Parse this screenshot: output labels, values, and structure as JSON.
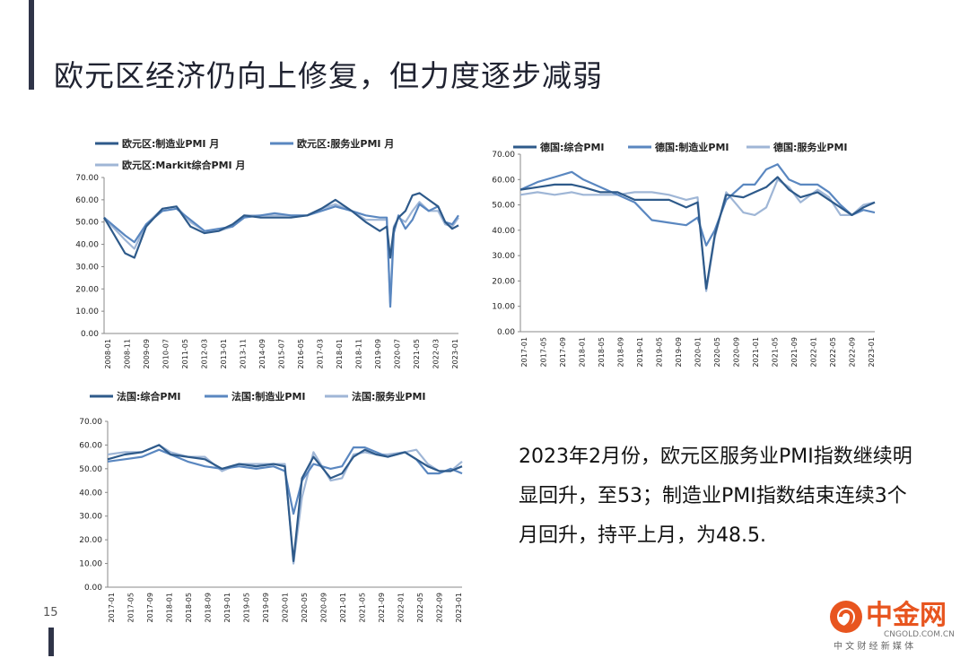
{
  "slide": {
    "title": "欧元区经济仍向上修复，但力度逐步减弱",
    "page_number": "15",
    "note": "2023年2月份，欧元区服务业PMI指数继续明显回升，至53；制造业PMI指数结束连续3个月回升，持平上月，为48.5.",
    "logo": {
      "name": "中金网",
      "url": "CNGOLD.COM.CN",
      "tagline": "中 文 财 经 新 媒 体"
    }
  },
  "chart_data": [
    {
      "type": "line",
      "title": "",
      "y_ticks": [
        "70.00",
        "60.00",
        "50.00",
        "40.00",
        "30.00",
        "20.00",
        "10.00",
        "0.00"
      ],
      "ylim": [
        0,
        70
      ],
      "x_ticks": [
        "2008-01",
        "2008-11",
        "2009-09",
        "2010-07",
        "2011-05",
        "2012-03",
        "2013-01",
        "2013-11",
        "2014-09",
        "2015-07",
        "2016-05",
        "2017-03",
        "2018-01",
        "2018-11",
        "2019-09",
        "2020-07",
        "2021-05",
        "2022-03",
        "2023-01"
      ],
      "x": [
        2008.0,
        2008.9,
        2009.3,
        2009.8,
        2010.5,
        2011.1,
        2011.7,
        2012.3,
        2012.9,
        2013.5,
        2014.0,
        2014.7,
        2015.3,
        2016.0,
        2016.7,
        2017.3,
        2017.9,
        2018.6,
        2019.2,
        2019.8,
        2020.1,
        2020.25,
        2020.4,
        2020.6,
        2020.9,
        2021.2,
        2021.5,
        2021.9,
        2022.3,
        2022.6,
        2022.9,
        2023.17
      ],
      "series": [
        {
          "name": "欧元区:制造业PMI 月",
          "color": "#2e5a8a",
          "values": [
            52,
            36,
            34,
            48,
            56,
            57,
            48,
            45,
            46,
            49,
            53,
            52,
            52,
            52,
            53,
            56,
            60,
            55,
            50,
            46,
            48,
            34,
            47,
            52,
            55,
            62,
            63,
            60,
            57,
            50,
            47,
            48.5
          ]
        },
        {
          "name": "欧元区:服务业PMI 月",
          "color": "#5a87c0",
          "values": [
            52,
            44,
            41,
            49,
            55,
            56,
            51,
            46,
            47,
            48,
            52,
            53,
            54,
            53,
            53,
            55,
            57,
            55,
            53,
            52,
            52,
            12,
            45,
            53,
            47,
            51,
            58,
            55,
            57,
            50,
            49,
            53
          ]
        },
        {
          "name": "欧元区:Markit综合PMI 月",
          "color": "#9fb6d6",
          "values": [
            52,
            42,
            38,
            49,
            56,
            57,
            50,
            46,
            46,
            48,
            53,
            53,
            53,
            53,
            53,
            56,
            58,
            55,
            51,
            51,
            51,
            13.6,
            48,
            52,
            50,
            55,
            59,
            55,
            55,
            49,
            48,
            52
          ]
        }
      ]
    },
    {
      "type": "line",
      "title": "",
      "y_ticks": [
        "70.00",
        "60.00",
        "50.00",
        "40.00",
        "30.00",
        "20.00",
        "10.00",
        "0.00"
      ],
      "ylim": [
        0,
        70
      ],
      "x_ticks": [
        "2017-01",
        "2017-05",
        "2017-09",
        "2018-01",
        "2018-05",
        "2018-09",
        "2019-01",
        "2019-05",
        "2019-09",
        "2020-01",
        "2020-05",
        "2020-09",
        "2021-01",
        "2021-05",
        "2021-09",
        "2022-01",
        "2022-05",
        "2022-09",
        "2023-01"
      ],
      "x": [
        2017.0,
        2017.3,
        2017.6,
        2017.9,
        2018.1,
        2018.4,
        2018.7,
        2019.0,
        2019.3,
        2019.6,
        2019.9,
        2020.1,
        2020.25,
        2020.4,
        2020.6,
        2020.9,
        2021.1,
        2021.3,
        2021.5,
        2021.7,
        2021.9,
        2022.2,
        2022.4,
        2022.6,
        2022.8,
        2023.0,
        2023.2
      ],
      "series": [
        {
          "name": "德国:综合PMI",
          "color": "#2e5a8a",
          "values": [
            56,
            57,
            58,
            58,
            57,
            55,
            55,
            52,
            52,
            52,
            49,
            51,
            17,
            38,
            54,
            53,
            55,
            57,
            61,
            56,
            53,
            55,
            52,
            49,
            46,
            49,
            51
          ]
        },
        {
          "name": "德国:制造业PMI",
          "color": "#5a87c0",
          "values": [
            56,
            59,
            61,
            63,
            60,
            57,
            54,
            51,
            44,
            43,
            42,
            45,
            34,
            40,
            52,
            58,
            58,
            64,
            66,
            60,
            58,
            58,
            55,
            50,
            46,
            48,
            47
          ]
        },
        {
          "name": "德国:服务业PMI",
          "color": "#9fb6d6",
          "values": [
            54,
            55,
            54,
            55,
            54,
            54,
            54,
            55,
            55,
            54,
            52,
            53,
            16,
            37,
            55,
            47,
            46,
            49,
            60,
            57,
            51,
            56,
            53,
            46,
            46,
            50,
            51
          ]
        }
      ]
    },
    {
      "type": "line",
      "title": "",
      "y_ticks": [
        "70.00",
        "60.00",
        "50.00",
        "40.00",
        "30.00",
        "20.00",
        "10.00",
        "0.00"
      ],
      "ylim": [
        0,
        70
      ],
      "x_ticks": [
        "2017-01",
        "2017-05",
        "2017-09",
        "2018-01",
        "2018-05",
        "2018-09",
        "2019-01",
        "2019-05",
        "2019-09",
        "2020-01",
        "2020-05",
        "2020-09",
        "2021-01",
        "2021-05",
        "2021-09",
        "2022-01",
        "2022-05",
        "2022-09",
        "2023-01"
      ],
      "x": [
        2017.0,
        2017.3,
        2017.6,
        2017.9,
        2018.1,
        2018.4,
        2018.7,
        2019.0,
        2019.3,
        2019.6,
        2019.9,
        2020.1,
        2020.25,
        2020.4,
        2020.6,
        2020.9,
        2021.1,
        2021.3,
        2021.5,
        2021.7,
        2021.9,
        2022.2,
        2022.4,
        2022.6,
        2022.8,
        2023.0,
        2023.2
      ],
      "series": [
        {
          "name": "法国:综合PMI",
          "color": "#2e5a8a",
          "values": [
            54,
            56,
            57,
            60,
            56,
            55,
            54,
            50,
            52,
            51,
            52,
            51,
            11,
            46,
            55,
            46,
            48,
            55,
            58,
            56,
            55,
            57,
            54,
            51,
            49,
            49,
            51
          ]
        },
        {
          "name": "法国:制造业PMI",
          "color": "#5a87c0",
          "values": [
            53,
            54,
            55,
            58,
            56,
            53,
            51,
            50,
            51,
            50,
            51,
            49,
            31,
            45,
            52,
            50,
            51,
            59,
            59,
            57,
            55,
            57,
            54,
            48,
            48,
            50,
            48
          ]
        },
        {
          "name": "法国:服务业PMI",
          "color": "#9fb6d6",
          "values": [
            56,
            57,
            57,
            60,
            57,
            55,
            55,
            49,
            52,
            52,
            52,
            52,
            10,
            38,
            57,
            45,
            46,
            56,
            57,
            56,
            56,
            57,
            58,
            52,
            49,
            49,
            53
          ]
        }
      ]
    }
  ]
}
